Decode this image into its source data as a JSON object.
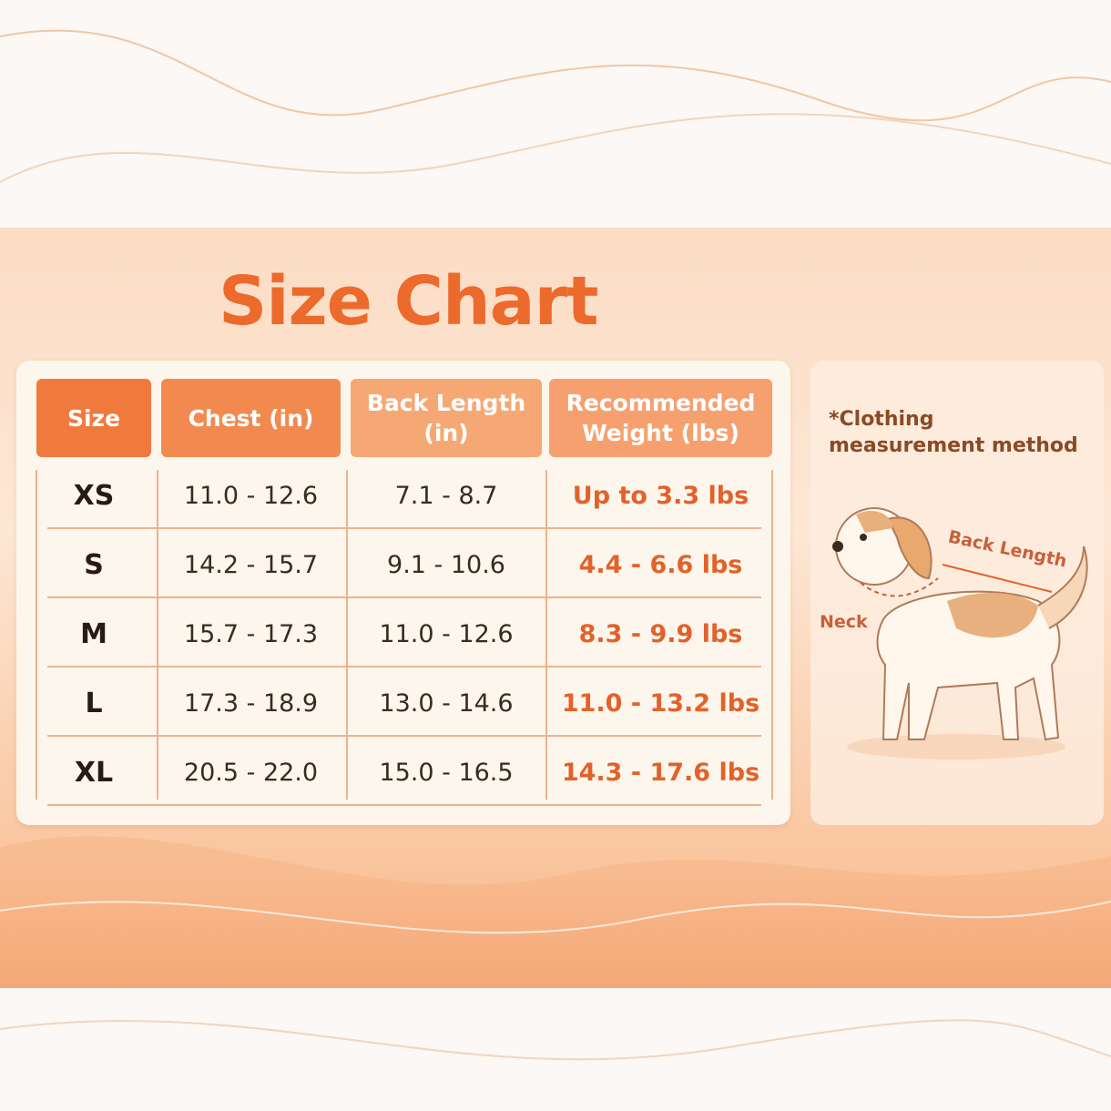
{
  "header": {
    "title": "Size Chart"
  },
  "table": {
    "columns": [
      "Size",
      "Chest (in)",
      "Back Length (in)",
      "Recommended Weight (lbs)"
    ],
    "rows": [
      [
        "XS",
        "11.0 - 12.6",
        "7.1 - 8.7",
        "Up to 3.3 lbs"
      ],
      [
        "S",
        "14.2 - 15.7",
        "9.1 - 10.6",
        "4.4 - 6.6 lbs"
      ],
      [
        "M",
        "15.7 - 17.3",
        "11.0 - 12.6",
        "8.3 - 9.9 lbs"
      ],
      [
        "L",
        "17.3 - 18.9",
        "13.0 - 14.6",
        "11.0 - 13.2 lbs"
      ],
      [
        "XL",
        "20.5 - 22.0",
        "15.0 - 16.5",
        "14.3 - 17.6 lbs"
      ]
    ]
  },
  "measurement": {
    "note": "*Clothing measurement method",
    "labels": {
      "back_length": "Back Length",
      "neck": "Neck"
    }
  }
}
